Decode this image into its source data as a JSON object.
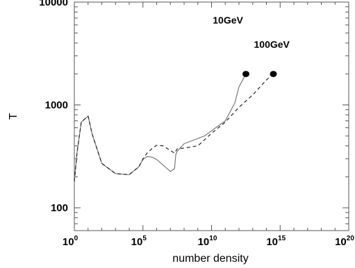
{
  "chart_data": {
    "type": "line",
    "title": "",
    "xlabel": "number density",
    "ylabel": "T",
    "xscale": "log",
    "yscale": "log",
    "xlim": [
      1,
      1e+20
    ],
    "ylim": [
      60,
      10000
    ],
    "x_ticks": [
      {
        "value": 1,
        "base": "10",
        "exp": "0"
      },
      {
        "value": 100000,
        "base": "10",
        "exp": "5"
      },
      {
        "value": 10000000000.0,
        "base": "10",
        "exp": "10"
      },
      {
        "value": 1000000000000000.0,
        "base": "10",
        "exp": "15"
      },
      {
        "value": 1e+20,
        "base": "10",
        "exp": "20"
      }
    ],
    "y_ticks": [
      {
        "value": 100,
        "label": "100"
      },
      {
        "value": 1000,
        "label": "1000"
      },
      {
        "value": 10000,
        "label": "10000"
      }
    ],
    "grid": false,
    "series": [
      {
        "style": "solid",
        "x": [
          1,
          1.6,
          3.2,
          10,
          20,
          100,
          1000,
          10000,
          50000,
          100000,
          200000,
          500000,
          1000000,
          3000000,
          10000000,
          20000000,
          25000000,
          32000000,
          100000000,
          3200000000.0,
          10000000000.0,
          100000000000.0,
          500000000000.0,
          1000000000000.0,
          3200000000000.0
        ],
        "y": [
          180,
          350,
          680,
          780,
          520,
          270,
          215,
          210,
          250,
          295,
          315,
          310,
          295,
          260,
          225,
          240,
          330,
          355,
          420,
          500,
          560,
          700,
          1050,
          1500,
          2000
        ]
      },
      {
        "style": "dashed",
        "x": [
          1,
          1.6,
          3.2,
          10,
          20,
          100,
          1000,
          10000,
          50000,
          100000,
          200000,
          500000,
          1000000,
          3000000,
          10000000,
          20000000,
          32000000,
          100000000,
          1000000000.0,
          10000000000.0,
          100000000000.0,
          1000000000000.0,
          10000000000000.0,
          100000000000000.0,
          320000000000000.0
        ],
        "y": [
          180,
          350,
          680,
          780,
          520,
          270,
          215,
          210,
          250,
          300,
          340,
          380,
          405,
          400,
          360,
          340,
          375,
          380,
          400,
          530,
          680,
          950,
          1250,
          1750,
          2000
        ]
      }
    ],
    "markers": [
      {
        "x": 3200000000000.0,
        "y": 2000
      },
      {
        "x": 320000000000000.0,
        "y": 2000
      }
    ],
    "annotations": [
      {
        "text": "10GeV",
        "x": 100000000000.0,
        "y": 6200
      },
      {
        "text": "100GeV",
        "x": 100000000000000.0,
        "y": 3600
      }
    ]
  }
}
